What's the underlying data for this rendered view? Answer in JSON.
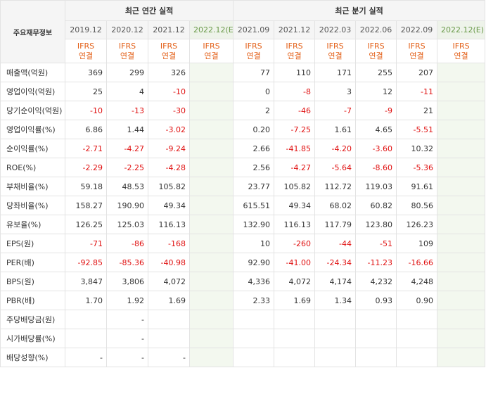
{
  "header": {
    "corner_label": "주요재무정보",
    "annual_group_label": "최근 연간 실적",
    "quarter_group_label": "최근 분기 실적"
  },
  "annual_periods": [
    "2019.12",
    "2020.12",
    "2021.12",
    "2022.12(E)"
  ],
  "quarter_periods": [
    "2021.09",
    "2021.12",
    "2022.03",
    "2022.06",
    "2022.09",
    "2022.12(E)"
  ],
  "ifrs": {
    "line1": "IFRS",
    "line2": "연결"
  },
  "rows": [
    {
      "label": "매출액(억원)",
      "annual": [
        "369",
        "299",
        "326",
        ""
      ],
      "quarter": [
        "77",
        "110",
        "171",
        "255",
        "207",
        ""
      ]
    },
    {
      "label": "영업이익(억원)",
      "annual": [
        "25",
        "4",
        "-10",
        ""
      ],
      "quarter": [
        "0",
        "-8",
        "3",
        "12",
        "-11",
        ""
      ]
    },
    {
      "label": "당기순이익(억원)",
      "annual": [
        "-10",
        "-13",
        "-30",
        ""
      ],
      "quarter": [
        "2",
        "-46",
        "-7",
        "-9",
        "21",
        ""
      ]
    },
    {
      "label": "영업이익률(%)",
      "annual": [
        "6.86",
        "1.44",
        "-3.02",
        ""
      ],
      "quarter": [
        "0.20",
        "-7.25",
        "1.61",
        "4.65",
        "-5.51",
        ""
      ]
    },
    {
      "label": "순이익률(%)",
      "annual": [
        "-2.71",
        "-4.27",
        "-9.24",
        ""
      ],
      "quarter": [
        "2.66",
        "-41.85",
        "-4.20",
        "-3.60",
        "10.32",
        ""
      ]
    },
    {
      "label": "ROE(%)",
      "annual": [
        "-2.29",
        "-2.25",
        "-4.28",
        ""
      ],
      "quarter": [
        "2.56",
        "-4.27",
        "-5.64",
        "-8.60",
        "-5.36",
        ""
      ]
    },
    {
      "label": "부채비율(%)",
      "annual": [
        "59.18",
        "48.53",
        "105.82",
        ""
      ],
      "quarter": [
        "23.77",
        "105.82",
        "112.72",
        "119.03",
        "91.61",
        ""
      ]
    },
    {
      "label": "당좌비율(%)",
      "annual": [
        "158.27",
        "190.90",
        "49.34",
        ""
      ],
      "quarter": [
        "615.51",
        "49.34",
        "68.02",
        "60.82",
        "80.56",
        ""
      ]
    },
    {
      "label": "유보율(%)",
      "annual": [
        "126.25",
        "125.03",
        "116.13",
        ""
      ],
      "quarter": [
        "132.90",
        "116.13",
        "117.79",
        "123.80",
        "126.23",
        ""
      ]
    },
    {
      "label": "EPS(원)",
      "annual": [
        "-71",
        "-86",
        "-168",
        ""
      ],
      "quarter": [
        "10",
        "-260",
        "-44",
        "-51",
        "109",
        ""
      ]
    },
    {
      "label": "PER(배)",
      "annual": [
        "-92.85",
        "-85.36",
        "-40.98",
        ""
      ],
      "quarter": [
        "92.90",
        "-41.00",
        "-24.34",
        "-11.23",
        "-16.66",
        ""
      ]
    },
    {
      "label": "BPS(원)",
      "annual": [
        "3,847",
        "3,806",
        "4,072",
        ""
      ],
      "quarter": [
        "4,336",
        "4,072",
        "4,174",
        "4,232",
        "4,248",
        ""
      ]
    },
    {
      "label": "PBR(배)",
      "annual": [
        "1.70",
        "1.92",
        "1.69",
        ""
      ],
      "quarter": [
        "2.33",
        "1.69",
        "1.34",
        "0.93",
        "0.90",
        ""
      ]
    },
    {
      "label": "주당배당금(원)",
      "annual": [
        "",
        "-",
        "",
        ""
      ],
      "quarter": [
        "",
        "",
        "",
        "",
        "",
        ""
      ]
    },
    {
      "label": "시가배당률(%)",
      "annual": [
        "",
        "-",
        "",
        ""
      ],
      "quarter": [
        "",
        "",
        "",
        "",
        "",
        ""
      ]
    },
    {
      "label": "배당성향(%)",
      "annual": [
        "-",
        "-",
        "-",
        ""
      ],
      "quarter": [
        "",
        "",
        "",
        "",
        "",
        ""
      ]
    }
  ],
  "colors": {
    "negative": "#e01010",
    "ifrs_label": "#e35f17",
    "estimate_bg": "#f3f8ef"
  }
}
